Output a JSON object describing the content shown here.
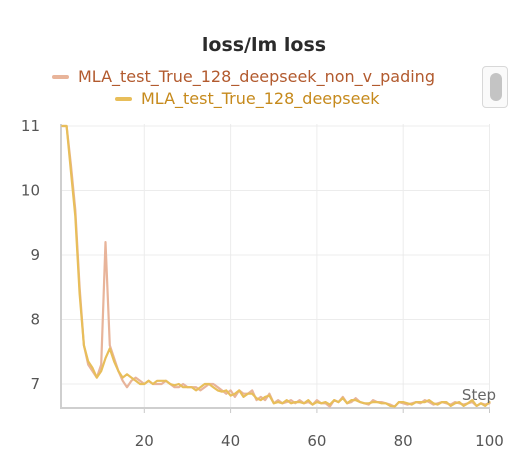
{
  "chart_data": {
    "type": "line",
    "title": "loss/lm loss",
    "xlabel": "Step",
    "ylabel": "",
    "xlim": [
      0,
      100
    ],
    "ylim": [
      6.75,
      11
    ],
    "x_ticks": [
      20,
      40,
      60,
      80,
      100
    ],
    "y_ticks": [
      7,
      8,
      9,
      10,
      11
    ],
    "grid": true,
    "legend_position": "top",
    "series": [
      {
        "name": "MLA_test_True_128_deepseek_non_v_pading",
        "color": "#e8b49a",
        "x": [
          1,
          2,
          3,
          4,
          5,
          6,
          7,
          8,
          9,
          10,
          11,
          12,
          13,
          14,
          15,
          16,
          17,
          18,
          19,
          20,
          21,
          22,
          23,
          24,
          25,
          26,
          27,
          28,
          29,
          30,
          31,
          32,
          33,
          34,
          35,
          36,
          37,
          38,
          39,
          40,
          41,
          42,
          43,
          44,
          45,
          46,
          47,
          48,
          49,
          50,
          51,
          52,
          53,
          54,
          55,
          56,
          57,
          58,
          59,
          60,
          61,
          62,
          63,
          64,
          65,
          66,
          67,
          68,
          69,
          70,
          71,
          72,
          73,
          74,
          75,
          76,
          77,
          78,
          79,
          80,
          81,
          82,
          83,
          84,
          85,
          86,
          87,
          88,
          89,
          90,
          91,
          92,
          93,
          94,
          95,
          96,
          97,
          98,
          99,
          100
        ],
        "y": [
          11.0,
          11.0,
          10.4,
          9.7,
          8.5,
          7.6,
          7.3,
          7.2,
          7.1,
          7.3,
          9.2,
          7.6,
          7.4,
          7.2,
          7.05,
          6.95,
          7.05,
          7.1,
          7.05,
          7.0,
          7.05,
          7.0,
          7.0,
          7.0,
          7.05,
          7.0,
          6.95,
          6.95,
          7.0,
          6.95,
          6.95,
          6.95,
          6.9,
          6.95,
          7.0,
          7.0,
          6.95,
          6.9,
          6.85,
          6.9,
          6.8,
          6.9,
          6.85,
          6.85,
          6.9,
          6.75,
          6.8,
          6.75,
          6.85,
          6.7,
          6.75,
          6.7,
          6.72,
          6.75,
          6.7,
          6.75,
          6.7,
          6.72,
          6.68,
          6.75,
          6.7,
          6.7,
          6.65,
          6.75,
          6.72,
          6.8,
          6.7,
          6.72,
          6.78,
          6.72,
          6.7,
          6.68,
          6.75,
          6.72,
          6.72,
          6.7,
          6.68,
          6.65,
          6.72,
          6.7,
          6.68,
          6.7,
          6.72,
          6.7,
          6.75,
          6.72,
          6.68,
          6.7,
          6.72,
          6.7,
          6.68,
          6.72,
          6.7,
          6.68,
          6.7,
          6.72,
          6.66,
          6.7,
          6.68,
          6.7
        ]
      },
      {
        "name": "MLA_test_True_128_deepseek",
        "color": "#e8be5a",
        "x": [
          1,
          2,
          3,
          4,
          5,
          6,
          7,
          8,
          9,
          10,
          11,
          12,
          13,
          14,
          15,
          16,
          17,
          18,
          19,
          20,
          21,
          22,
          23,
          24,
          25,
          26,
          27,
          28,
          29,
          30,
          31,
          32,
          33,
          34,
          35,
          36,
          37,
          38,
          39,
          40,
          41,
          42,
          43,
          44,
          45,
          46,
          47,
          48,
          49,
          50,
          51,
          52,
          53,
          54,
          55,
          56,
          57,
          58,
          59,
          60,
          61,
          62,
          63,
          64,
          65,
          66,
          67,
          68,
          69,
          70,
          71,
          72,
          73,
          74,
          75,
          76,
          77,
          78,
          79,
          80,
          81,
          82,
          83,
          84,
          85,
          86,
          87,
          88,
          89,
          90,
          91,
          92,
          93,
          94,
          95,
          96,
          97,
          98,
          99,
          100
        ],
        "y": [
          11.0,
          11.0,
          10.3,
          9.6,
          8.4,
          7.6,
          7.35,
          7.25,
          7.1,
          7.2,
          7.4,
          7.55,
          7.35,
          7.2,
          7.1,
          7.15,
          7.1,
          7.05,
          7.0,
          7.0,
          7.05,
          7.0,
          7.05,
          7.05,
          7.05,
          7.0,
          6.98,
          7.0,
          6.95,
          6.95,
          6.95,
          6.9,
          6.95,
          7.0,
          7.0,
          6.95,
          6.9,
          6.88,
          6.9,
          6.82,
          6.85,
          6.9,
          6.8,
          6.85,
          6.85,
          6.78,
          6.75,
          6.8,
          6.82,
          6.7,
          6.72,
          6.7,
          6.75,
          6.7,
          6.72,
          6.72,
          6.7,
          6.75,
          6.68,
          6.72,
          6.7,
          6.72,
          6.68,
          6.75,
          6.72,
          6.78,
          6.7,
          6.75,
          6.75,
          6.72,
          6.7,
          6.7,
          6.72,
          6.72,
          6.7,
          6.7,
          6.66,
          6.65,
          6.72,
          6.72,
          6.7,
          6.68,
          6.72,
          6.72,
          6.72,
          6.75,
          6.7,
          6.68,
          6.72,
          6.72,
          6.66,
          6.7,
          6.72,
          6.66,
          6.7,
          6.75,
          6.66,
          6.7,
          6.66,
          6.72
        ]
      }
    ]
  }
}
